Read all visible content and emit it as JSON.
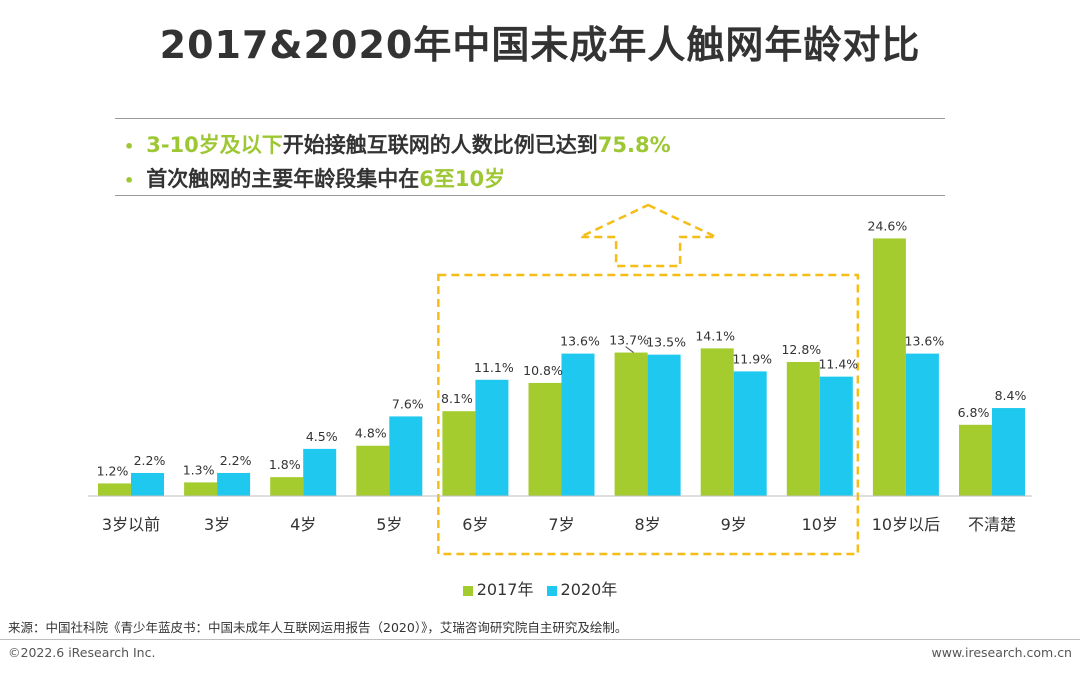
{
  "title": "2017&2020年中国未成年人触网年龄对比",
  "bullets": [
    {
      "dot": "•",
      "hl1": "3-10岁及以下",
      "text": "开始接触互联网的人数比例已达到",
      "hl2": "75.8%",
      "tail": ""
    },
    {
      "dot": "•",
      "hl1": "",
      "text": "首次触网的主要年龄段集中在",
      "hl2": "6至10岁",
      "tail": ""
    }
  ],
  "colors": {
    "s2017": "#a4cc2e",
    "s2020": "#1ec8ee",
    "accent": "#9dc733",
    "highlight_box": "#f6bd16"
  },
  "chart_data": {
    "type": "bar",
    "categories": [
      "3岁以前",
      "3岁",
      "4岁",
      "5岁",
      "6岁",
      "7岁",
      "8岁",
      "9岁",
      "10岁",
      "10岁以后",
      "不清楚"
    ],
    "series": [
      {
        "name": "2017年",
        "values": [
          1.2,
          1.3,
          1.8,
          4.8,
          8.1,
          10.8,
          13.7,
          14.1,
          12.8,
          24.6,
          6.8
        ]
      },
      {
        "name": "2020年",
        "values": [
          2.2,
          2.2,
          4.5,
          7.6,
          11.1,
          13.6,
          13.5,
          11.9,
          11.4,
          13.6,
          8.4
        ]
      }
    ],
    "value_labels": [
      [
        "1.2%",
        "1.3%",
        "1.8%",
        "4.8%",
        "8.1%",
        "10.8%",
        "13.7%",
        "14.1%",
        "12.8%",
        "24.6%",
        "6.8%"
      ],
      [
        "2.2%",
        "2.2%",
        "4.5%",
        "7.6%",
        "11.1%",
        "13.6%",
        "13.5%",
        "11.9%",
        "11.4%",
        "13.6%",
        "8.4%"
      ]
    ],
    "highlight_categories": [
      "6岁",
      "7岁",
      "8岁",
      "9岁",
      "10岁"
    ],
    "legend_position": "bottom",
    "grid": false
  },
  "source": "来源：中国社科院《青少年蓝皮书：中国未成年人互联网运用报告（2020）》，艾瑞咨询研究院自主研究及绘制。",
  "copyright": "©2022.6 iResearch Inc.",
  "website": "www.iresearch.com.cn"
}
